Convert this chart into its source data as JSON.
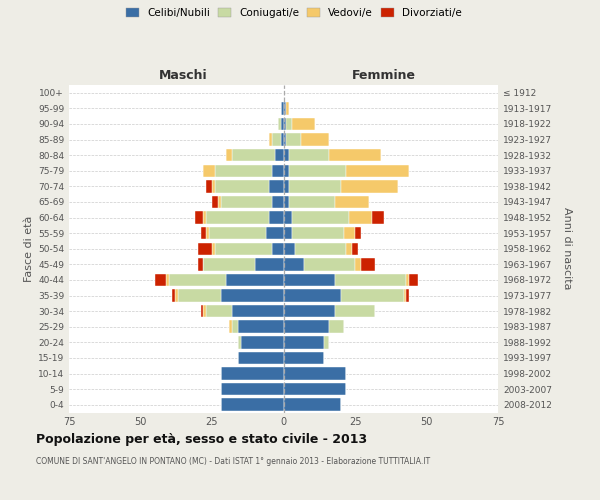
{
  "age_groups": [
    "100+",
    "95-99",
    "90-94",
    "85-89",
    "80-84",
    "75-79",
    "70-74",
    "65-69",
    "60-64",
    "55-59",
    "50-54",
    "45-49",
    "40-44",
    "35-39",
    "30-34",
    "25-29",
    "20-24",
    "15-19",
    "10-14",
    "5-9",
    "0-4"
  ],
  "birth_years": [
    "≤ 1912",
    "1913-1917",
    "1918-1922",
    "1923-1927",
    "1928-1932",
    "1933-1937",
    "1938-1942",
    "1943-1947",
    "1948-1952",
    "1953-1957",
    "1958-1962",
    "1963-1967",
    "1968-1972",
    "1973-1977",
    "1978-1982",
    "1983-1987",
    "1988-1992",
    "1993-1997",
    "1998-2002",
    "2003-2007",
    "2008-2012"
  ],
  "maschi": {
    "celibi": [
      0,
      1,
      1,
      1,
      3,
      4,
      5,
      4,
      5,
      6,
      4,
      10,
      20,
      22,
      18,
      16,
      15,
      16,
      22,
      22,
      22
    ],
    "coniugati": [
      0,
      0,
      1,
      3,
      15,
      20,
      19,
      18,
      22,
      20,
      20,
      18,
      20,
      15,
      9,
      2,
      1,
      0,
      0,
      0,
      0
    ],
    "vedovi": [
      0,
      0,
      0,
      1,
      2,
      4,
      1,
      1,
      1,
      1,
      1,
      0,
      1,
      1,
      1,
      1,
      0,
      0,
      0,
      0,
      0
    ],
    "divorziati": [
      0,
      0,
      0,
      0,
      0,
      0,
      2,
      2,
      3,
      2,
      5,
      2,
      4,
      1,
      1,
      0,
      0,
      0,
      0,
      0,
      0
    ]
  },
  "femmine": {
    "nubili": [
      0,
      1,
      1,
      1,
      2,
      2,
      2,
      2,
      3,
      3,
      4,
      7,
      18,
      20,
      18,
      16,
      14,
      14,
      22,
      22,
      20
    ],
    "coniugate": [
      0,
      0,
      2,
      5,
      14,
      20,
      18,
      16,
      20,
      18,
      18,
      18,
      25,
      22,
      14,
      5,
      2,
      0,
      0,
      0,
      0
    ],
    "vedove": [
      0,
      1,
      8,
      10,
      18,
      22,
      20,
      12,
      8,
      4,
      2,
      2,
      1,
      1,
      0,
      0,
      0,
      0,
      0,
      0,
      0
    ],
    "divorziate": [
      0,
      0,
      0,
      0,
      0,
      0,
      0,
      0,
      4,
      2,
      2,
      5,
      3,
      1,
      0,
      0,
      0,
      0,
      0,
      0,
      0
    ]
  },
  "colors": {
    "celibi": "#3a6ea5",
    "coniugati": "#c8daa3",
    "vedovi": "#f5c96a",
    "divorziati": "#cc2200"
  },
  "title": "Popolazione per età, sesso e stato civile - 2013",
  "subtitle": "COMUNE DI SANT'ANGELO IN PONTANO (MC) - Dati ISTAT 1° gennaio 2013 - Elaborazione TUTTITALIA.IT",
  "label_maschi": "Maschi",
  "label_femmine": "Femmine",
  "ylabel_left": "Fasce di età",
  "ylabel_right": "Anni di nascita",
  "legend_labels": [
    "Celibi/Nubili",
    "Coniugati/e",
    "Vedovi/e",
    "Divorziati/e"
  ],
  "xlim": 75,
  "bg_color": "#eeede6",
  "plot_bg": "#ffffff",
  "grid_color": "#cccccc"
}
